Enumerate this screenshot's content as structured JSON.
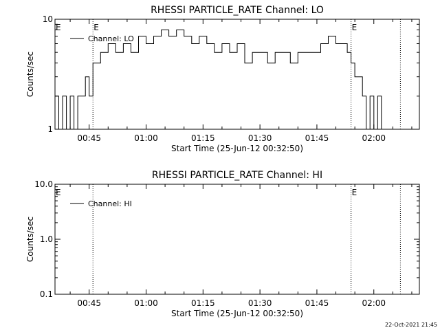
{
  "footer_timestamp": "22-Oct-2021 21:45",
  "chart_data": [
    {
      "type": "line",
      "title": "RHESSI PARTICLE_RATE Channel: LO",
      "xlabel": "Start Time (25-Jun-12 00:32:50)",
      "ylabel": "Counts/sec",
      "y_scale": "log",
      "ylim": [
        1,
        10
      ],
      "xlim": [
        "00:36",
        "02:12"
      ],
      "x_ticks": [
        "00:45",
        "01:00",
        "01:15",
        "01:30",
        "01:45",
        "02:00"
      ],
      "y_ticks": [
        "1",
        "10"
      ],
      "legend": {
        "entries": [
          "Channel: LO"
        ],
        "placement": "top-left"
      },
      "markers": [
        {
          "time": "00:46",
          "label": "E"
        },
        {
          "time": "01:54",
          "label": "E"
        },
        {
          "time": "02:07",
          "label": ""
        }
      ],
      "edge_label": "E",
      "grid": false,
      "series": [
        {
          "name": "Channel: LO",
          "x": [
            "00:36",
            "00:37",
            "00:38",
            "00:39",
            "00:40",
            "00:41",
            "00:42",
            "00:43",
            "00:44",
            "00:45",
            "00:46",
            "00:47",
            "00:48",
            "00:49",
            "00:50",
            "00:52",
            "00:54",
            "00:56",
            "00:58",
            "01:00",
            "01:02",
            "01:04",
            "01:06",
            "01:08",
            "01:10",
            "01:12",
            "01:14",
            "01:16",
            "01:18",
            "01:20",
            "01:22",
            "01:24",
            "01:26",
            "01:28",
            "01:30",
            "01:32",
            "01:34",
            "01:36",
            "01:38",
            "01:40",
            "01:42",
            "01:44",
            "01:46",
            "01:48",
            "01:50",
            "01:52",
            "01:53",
            "01:54",
            "01:55",
            "01:56",
            "01:57",
            "01:58",
            "01:59",
            "02:00",
            "02:01",
            "02:02"
          ],
          "values": [
            2,
            1,
            2,
            1,
            2,
            1,
            2,
            2,
            3,
            2,
            4,
            4,
            5,
            5,
            6,
            5,
            6,
            5,
            7,
            6,
            7,
            8,
            7,
            8,
            7,
            6,
            7,
            6,
            5,
            6,
            5,
            6,
            4,
            5,
            5,
            4,
            5,
            5,
            4,
            5,
            5,
            5,
            6,
            7,
            6,
            6,
            5,
            4,
            3,
            3,
            2,
            1,
            2,
            1,
            2,
            1
          ]
        }
      ]
    },
    {
      "type": "line",
      "title": "RHESSI PARTICLE_RATE Channel: HI",
      "xlabel": "Start Time (25-Jun-12 00:32:50)",
      "ylabel": "Counts/sec",
      "y_scale": "log",
      "ylim": [
        0.1,
        10
      ],
      "xlim": [
        "00:36",
        "02:12"
      ],
      "x_ticks": [
        "00:45",
        "01:00",
        "01:15",
        "01:30",
        "01:45",
        "02:00"
      ],
      "y_ticks": [
        "0.1",
        "1.0",
        "10.0"
      ],
      "legend": {
        "entries": [
          "Channel: HI"
        ],
        "placement": "top-left"
      },
      "markers": [
        {
          "time": "00:46",
          "label": ""
        },
        {
          "time": "01:54",
          "label": "E"
        },
        {
          "time": "02:07",
          "label": ""
        }
      ],
      "edge_label": "E",
      "grid": false,
      "series": [
        {
          "name": "Channel: HI",
          "x": [],
          "values": []
        }
      ]
    }
  ]
}
